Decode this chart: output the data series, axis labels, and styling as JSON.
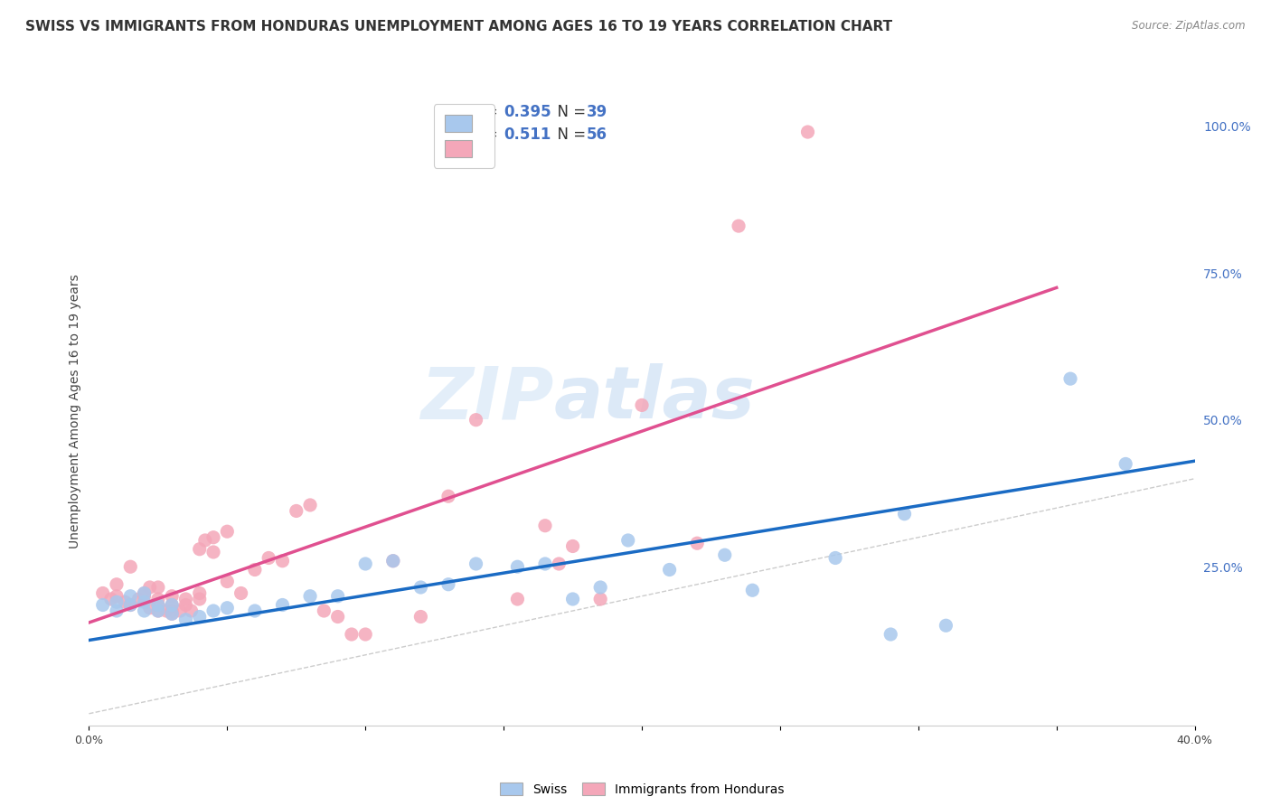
{
  "title": "SWISS VS IMMIGRANTS FROM HONDURAS UNEMPLOYMENT AMONG AGES 16 TO 19 YEARS CORRELATION CHART",
  "source": "Source: ZipAtlas.com",
  "ylabel": "Unemployment Among Ages 16 to 19 years",
  "xlim": [
    0.0,
    0.4
  ],
  "ylim": [
    -0.02,
    1.05
  ],
  "y_ticks_right": [
    0.0,
    0.25,
    0.5,
    0.75,
    1.0
  ],
  "y_tick_labels_right": [
    "",
    "25.0%",
    "50.0%",
    "75.0%",
    "100.0%"
  ],
  "swiss_color": "#A8C8ED",
  "honduras_color": "#F4A7B9",
  "swiss_line_color": "#1A6BC4",
  "honduras_line_color": "#E05090",
  "diagonal_color": "#CCCCCC",
  "watermark_zip": "ZIP",
  "watermark_atlas": "atlas",
  "legend_R_swiss": "0.395",
  "legend_N_swiss": "39",
  "legend_R_honduras": "0.511",
  "legend_N_honduras": "56",
  "swiss_scatter_x": [
    0.005,
    0.01,
    0.01,
    0.015,
    0.015,
    0.02,
    0.02,
    0.02,
    0.025,
    0.025,
    0.03,
    0.03,
    0.035,
    0.04,
    0.045,
    0.05,
    0.06,
    0.07,
    0.08,
    0.09,
    0.1,
    0.11,
    0.12,
    0.13,
    0.14,
    0.155,
    0.165,
    0.175,
    0.185,
    0.195,
    0.21,
    0.23,
    0.24,
    0.27,
    0.29,
    0.31,
    0.355,
    0.375,
    0.295
  ],
  "swiss_scatter_y": [
    0.185,
    0.175,
    0.19,
    0.185,
    0.2,
    0.175,
    0.19,
    0.205,
    0.175,
    0.185,
    0.17,
    0.185,
    0.16,
    0.165,
    0.175,
    0.18,
    0.175,
    0.185,
    0.2,
    0.2,
    0.255,
    0.26,
    0.215,
    0.22,
    0.255,
    0.25,
    0.255,
    0.195,
    0.215,
    0.295,
    0.245,
    0.27,
    0.21,
    0.265,
    0.135,
    0.15,
    0.57,
    0.425,
    0.34
  ],
  "honduras_scatter_x": [
    0.005,
    0.008,
    0.01,
    0.01,
    0.013,
    0.015,
    0.015,
    0.018,
    0.02,
    0.02,
    0.022,
    0.022,
    0.025,
    0.025,
    0.025,
    0.025,
    0.028,
    0.03,
    0.03,
    0.03,
    0.03,
    0.033,
    0.035,
    0.035,
    0.037,
    0.04,
    0.04,
    0.04,
    0.042,
    0.045,
    0.045,
    0.05,
    0.05,
    0.055,
    0.06,
    0.065,
    0.07,
    0.075,
    0.08,
    0.085,
    0.09,
    0.095,
    0.1,
    0.11,
    0.12,
    0.13,
    0.14,
    0.155,
    0.165,
    0.17,
    0.175,
    0.185,
    0.2,
    0.22,
    0.235,
    0.26
  ],
  "honduras_scatter_y": [
    0.205,
    0.195,
    0.2,
    0.22,
    0.19,
    0.185,
    0.25,
    0.195,
    0.2,
    0.205,
    0.18,
    0.215,
    0.175,
    0.185,
    0.195,
    0.215,
    0.175,
    0.17,
    0.175,
    0.185,
    0.2,
    0.175,
    0.185,
    0.195,
    0.175,
    0.195,
    0.205,
    0.28,
    0.295,
    0.275,
    0.3,
    0.225,
    0.31,
    0.205,
    0.245,
    0.265,
    0.26,
    0.345,
    0.355,
    0.175,
    0.165,
    0.135,
    0.135,
    0.26,
    0.165,
    0.37,
    0.5,
    0.195,
    0.32,
    0.255,
    0.285,
    0.195,
    0.525,
    0.29,
    0.83,
    0.99
  ],
  "swiss_trend_x": [
    0.0,
    0.4
  ],
  "swiss_trend_y": [
    0.125,
    0.43
  ],
  "honduras_trend_x": [
    0.0,
    0.35
  ],
  "honduras_trend_y": [
    0.155,
    0.725
  ],
  "background_color": "#FFFFFF",
  "title_fontsize": 11,
  "axis_label_fontsize": 10,
  "tick_fontsize": 9,
  "legend_fontsize": 12
}
